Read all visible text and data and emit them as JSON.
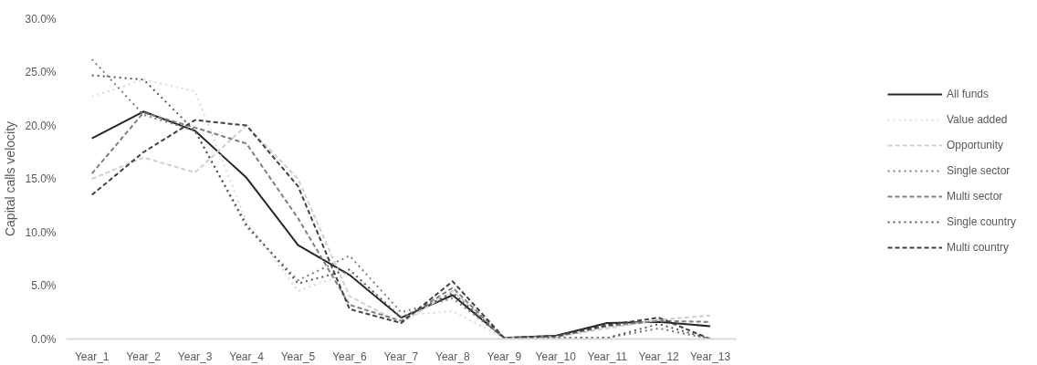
{
  "chart_data": {
    "type": "line",
    "ylabel": "Capital calls velocity",
    "categories": [
      "Year_1",
      "Year_2",
      "Year_3",
      "Year_4",
      "Year_5",
      "Year_6",
      "Year_7",
      "Year_8",
      "Year_9",
      "Year_10",
      "Year_11",
      "Year_12",
      "Year_13"
    ],
    "ylim": [
      0,
      30
    ],
    "yticks": [
      {
        "value": 0,
        "label": "0.0%"
      },
      {
        "value": 5,
        "label": "5.0%"
      },
      {
        "value": 10,
        "label": "10.0%"
      },
      {
        "value": 15,
        "label": "15.0%"
      },
      {
        "value": 20,
        "label": "20.0%"
      },
      {
        "value": 25,
        "label": "25.0%"
      },
      {
        "value": 30,
        "label": "30.0%"
      }
    ],
    "grid": false,
    "legend": "right",
    "marker": "none",
    "series": [
      {
        "name": "All funds",
        "color": "#262626",
        "line_style": "solid",
        "values": [
          18.8,
          21.3,
          19.5,
          15.1,
          8.8,
          6.0,
          2.0,
          4.1,
          0.1,
          0.3,
          1.5,
          1.6,
          1.2
        ]
      },
      {
        "name": "Value added",
        "color": "#d9d9d9",
        "line_style": "dotted",
        "values": [
          22.7,
          24.3,
          23.2,
          11.0,
          4.5,
          6.2,
          2.2,
          2.6,
          0.1,
          0.1,
          0.1,
          1.0,
          0.0
        ]
      },
      {
        "name": "Opportunity",
        "color": "#d0d0d0",
        "line_style": "dashed",
        "values": [
          15.0,
          17.0,
          15.6,
          20.0,
          15.0,
          4.0,
          1.5,
          4.5,
          0.1,
          0.2,
          1.0,
          1.8,
          2.2
        ]
      },
      {
        "name": "Single sector",
        "color": "#7f7f7f",
        "line_style": "dotted",
        "values": [
          26.2,
          21.0,
          19.5,
          10.5,
          5.5,
          7.8,
          2.5,
          3.8,
          0.1,
          0.1,
          0.1,
          1.0,
          0.0
        ]
      },
      {
        "name": "Multi sector",
        "color": "#7f7f7f",
        "line_style": "dashed",
        "values": [
          15.5,
          21.2,
          19.8,
          18.3,
          11.3,
          3.2,
          1.7,
          4.8,
          0.1,
          0.2,
          1.2,
          1.7,
          1.6
        ]
      },
      {
        "name": "Single country",
        "color": "#595959",
        "line_style": "dotted",
        "values": [
          24.7,
          24.3,
          19.5,
          10.7,
          5.2,
          6.5,
          2.0,
          4.3,
          0.1,
          0.1,
          0.1,
          1.4,
          0.0
        ]
      },
      {
        "name": "Multi country",
        "color": "#404040",
        "line_style": "dashed",
        "values": [
          13.5,
          17.5,
          20.5,
          20.0,
          14.3,
          2.8,
          1.5,
          5.4,
          0.1,
          0.3,
          1.3,
          2.0,
          0.0
        ]
      }
    ]
  }
}
